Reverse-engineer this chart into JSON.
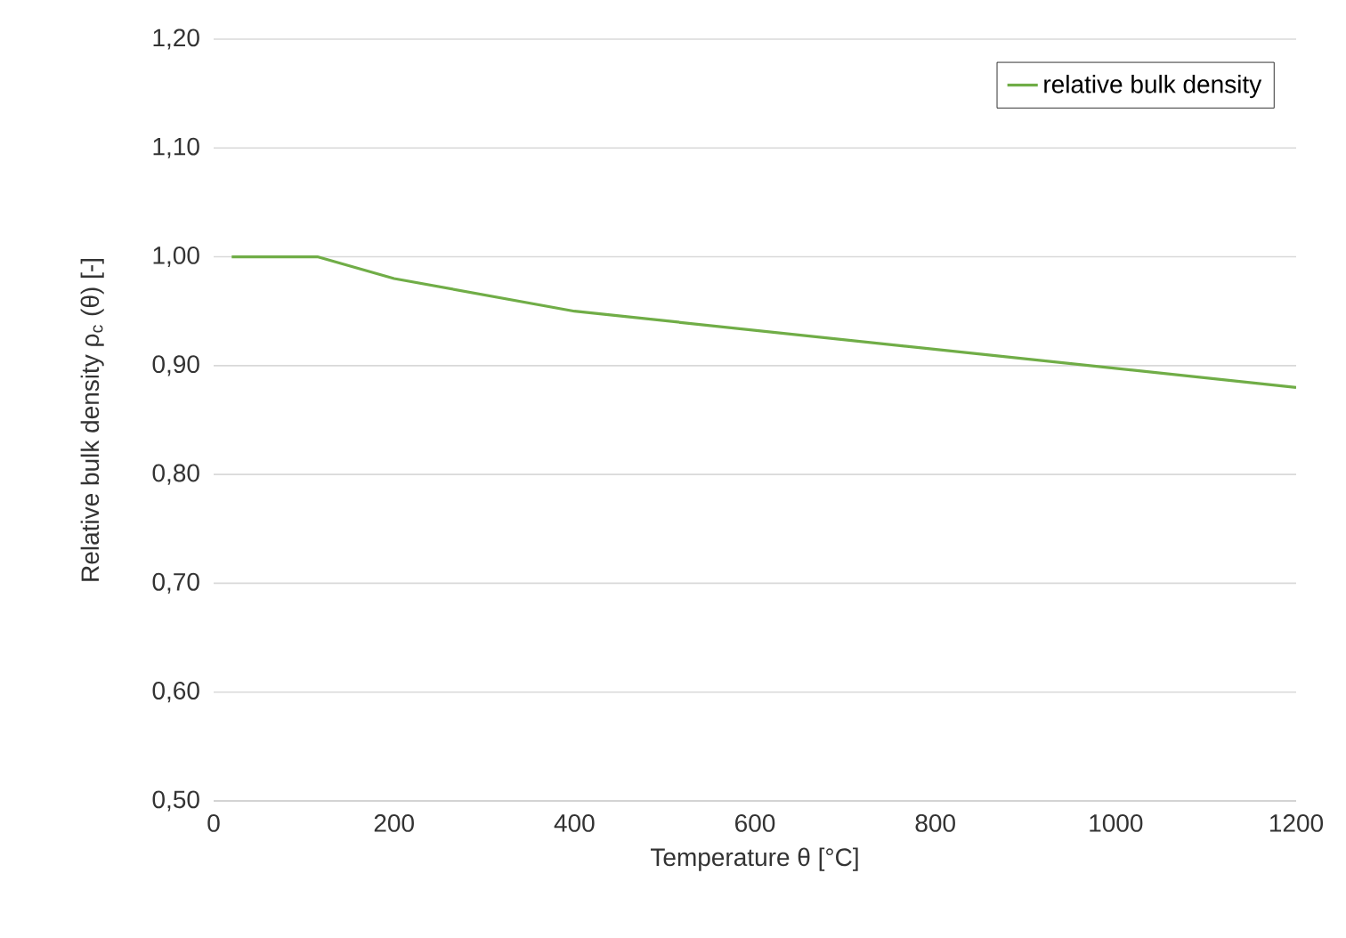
{
  "chart_data": {
    "type": "line",
    "xlabel": "Temperature θ [°C]",
    "ylabel": "Relative bulk density ρ$_{c}$ (θ) [-]",
    "x": [
      20,
      115,
      200,
      400,
      1200
    ],
    "series": [
      {
        "name": "relative bulk density",
        "color": "#70ad47",
        "values": [
          1.0,
          1.0,
          0.98,
          0.95,
          0.88
        ]
      }
    ],
    "xlim": [
      0,
      1200
    ],
    "xticks": [
      0,
      200,
      400,
      600,
      800,
      1000,
      1200
    ],
    "ylim": [
      0.5,
      1.2
    ],
    "yticks": [
      {
        "value": 0.5,
        "label": "0,50"
      },
      {
        "value": 0.6,
        "label": "0,60"
      },
      {
        "value": 0.7,
        "label": "0,70"
      },
      {
        "value": 0.8,
        "label": "0,80"
      },
      {
        "value": 0.9,
        "label": "0,90"
      },
      {
        "value": 1.0,
        "label": "1,00"
      },
      {
        "value": 1.1,
        "label": "1,10"
      },
      {
        "value": 1.2,
        "label": "1,20"
      }
    ],
    "grid": "y",
    "legend": "top right",
    "marker": "none",
    "line_style": "solid"
  }
}
